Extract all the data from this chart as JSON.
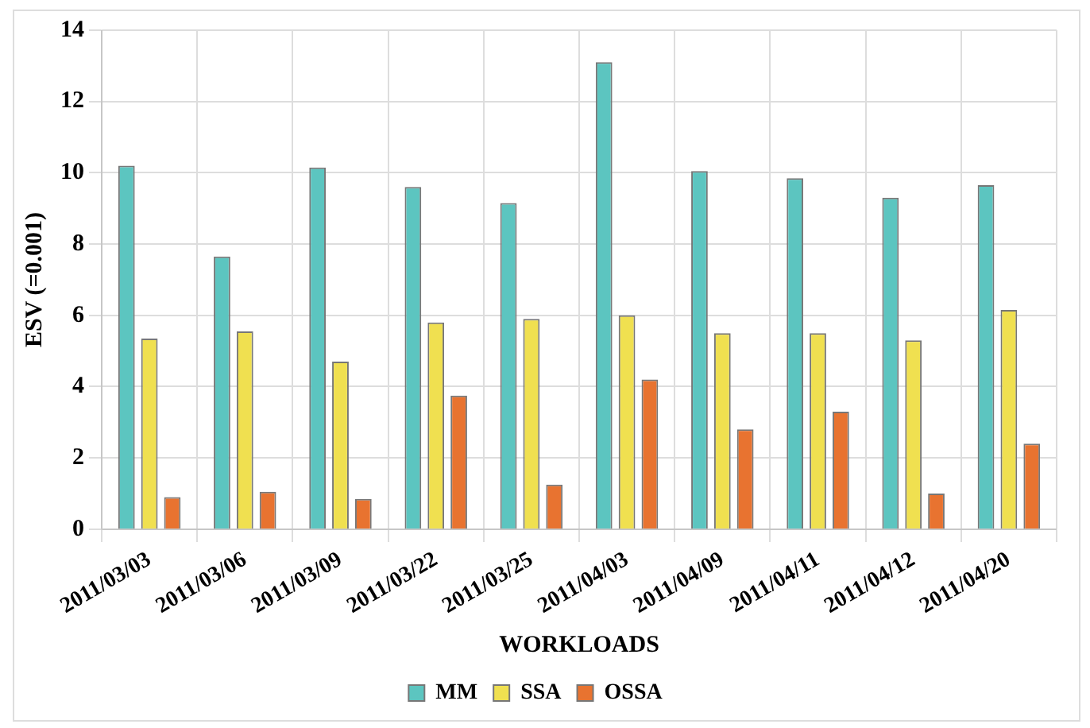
{
  "chart_data": {
    "type": "bar",
    "xlabel": "WORKLOADS",
    "ylabel": "ESV (=0.001)",
    "categories": [
      "2011/03/03",
      "2011/03/06",
      "2011/03/09",
      "2011/03/22",
      "2011/03/25",
      "2011/04/03",
      "2011/04/09",
      "2011/04/11",
      "2011/04/12",
      "2011/04/20"
    ],
    "series": [
      {
        "name": "MM",
        "color": "#5cc5c0",
        "values": [
          10.2,
          7.65,
          10.15,
          9.6,
          9.15,
          13.1,
          10.05,
          9.85,
          9.3,
          9.65
        ]
      },
      {
        "name": "SSA",
        "color": "#f0e050",
        "values": [
          5.35,
          5.55,
          4.7,
          5.8,
          5.9,
          6.0,
          5.5,
          5.5,
          5.3,
          6.15
        ]
      },
      {
        "name": "OSSA",
        "color": "#e87330",
        "values": [
          0.9,
          1.05,
          0.85,
          3.75,
          1.25,
          4.2,
          2.8,
          3.3,
          1.0,
          2.4
        ]
      }
    ],
    "ylim": [
      0,
      14
    ],
    "yticks": [
      0,
      2,
      4,
      6,
      8,
      10,
      12,
      14
    ],
    "grid": true,
    "legend": "bottom"
  }
}
